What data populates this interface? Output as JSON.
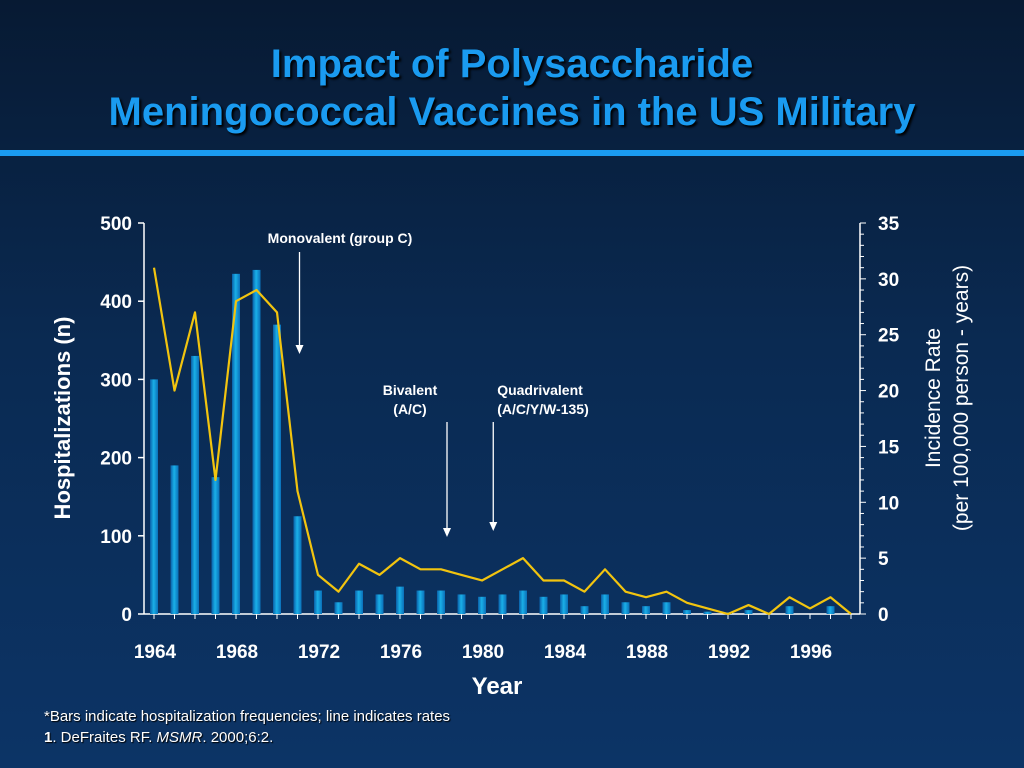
{
  "slide": {
    "title_line1": "Impact of Polysaccharide",
    "title_line2": "Meningococcal Vaccines in the US Military",
    "footnote_bars": "*Bars indicate hospitalization frequencies; line indicates rates",
    "citation_num": "1",
    "citation_author": ". DeFraites RF. ",
    "citation_journal": "MSMR",
    "citation_rest": ". 2000;6:2."
  },
  "colors": {
    "background": "#0a2a52",
    "title": "#1a9bf0",
    "bar": "#1ab0e8",
    "line": "#f2c40f",
    "text": "#ffffff"
  },
  "chart_data": {
    "type": "bar",
    "xlabel": "Year",
    "ylabel_left": "Hospitalizations (n)",
    "ylabel_right_line1": "Incidence Rate",
    "ylabel_right_line2": "(per 100,000 person - years)",
    "ylim_left": [
      0,
      500
    ],
    "ylim_right": [
      0,
      35
    ],
    "yticks_left": [
      0,
      100,
      200,
      300,
      400,
      500
    ],
    "yticks_right": [
      0,
      5,
      10,
      15,
      20,
      25,
      30,
      35
    ],
    "xticks": [
      1964,
      1968,
      1972,
      1976,
      1980,
      1984,
      1988,
      1992,
      1996
    ],
    "x": [
      1964,
      1965,
      1966,
      1967,
      1968,
      1969,
      1970,
      1971,
      1972,
      1973,
      1974,
      1975,
      1976,
      1977,
      1978,
      1979,
      1980,
      1981,
      1982,
      1983,
      1984,
      1985,
      1986,
      1987,
      1988,
      1989,
      1990,
      1991,
      1992,
      1993,
      1994,
      1995,
      1996,
      1997,
      1998
    ],
    "series": [
      {
        "type": "bar",
        "axis": "left",
        "values": [
          300,
          190,
          330,
          175,
          435,
          440,
          370,
          125,
          30,
          15,
          30,
          25,
          35,
          30,
          30,
          25,
          22,
          25,
          30,
          22,
          25,
          10,
          25,
          15,
          10,
          15,
          5,
          3,
          2,
          5,
          0,
          10,
          0,
          10,
          0
        ]
      },
      {
        "type": "line",
        "axis": "right",
        "values": [
          31,
          20,
          27,
          12,
          28,
          29,
          27,
          11,
          3.5,
          2,
          4.5,
          3.5,
          5,
          4,
          4,
          3.5,
          3,
          4,
          5,
          3,
          3,
          2,
          4,
          2,
          1.5,
          2,
          1,
          0.5,
          0,
          0.8,
          0,
          1.5,
          0.5,
          1.5,
          0
        ]
      }
    ],
    "annotations": [
      {
        "label": "Monovalent (group C)",
        "x": 1971
      },
      {
        "label_line1": "Bivalent",
        "label_line2": "(A/C)",
        "x": 1978
      },
      {
        "label_line1": "Quadrivalent",
        "label_line2": "(A/C/Y/W-135)",
        "x": 1980.5
      }
    ]
  }
}
